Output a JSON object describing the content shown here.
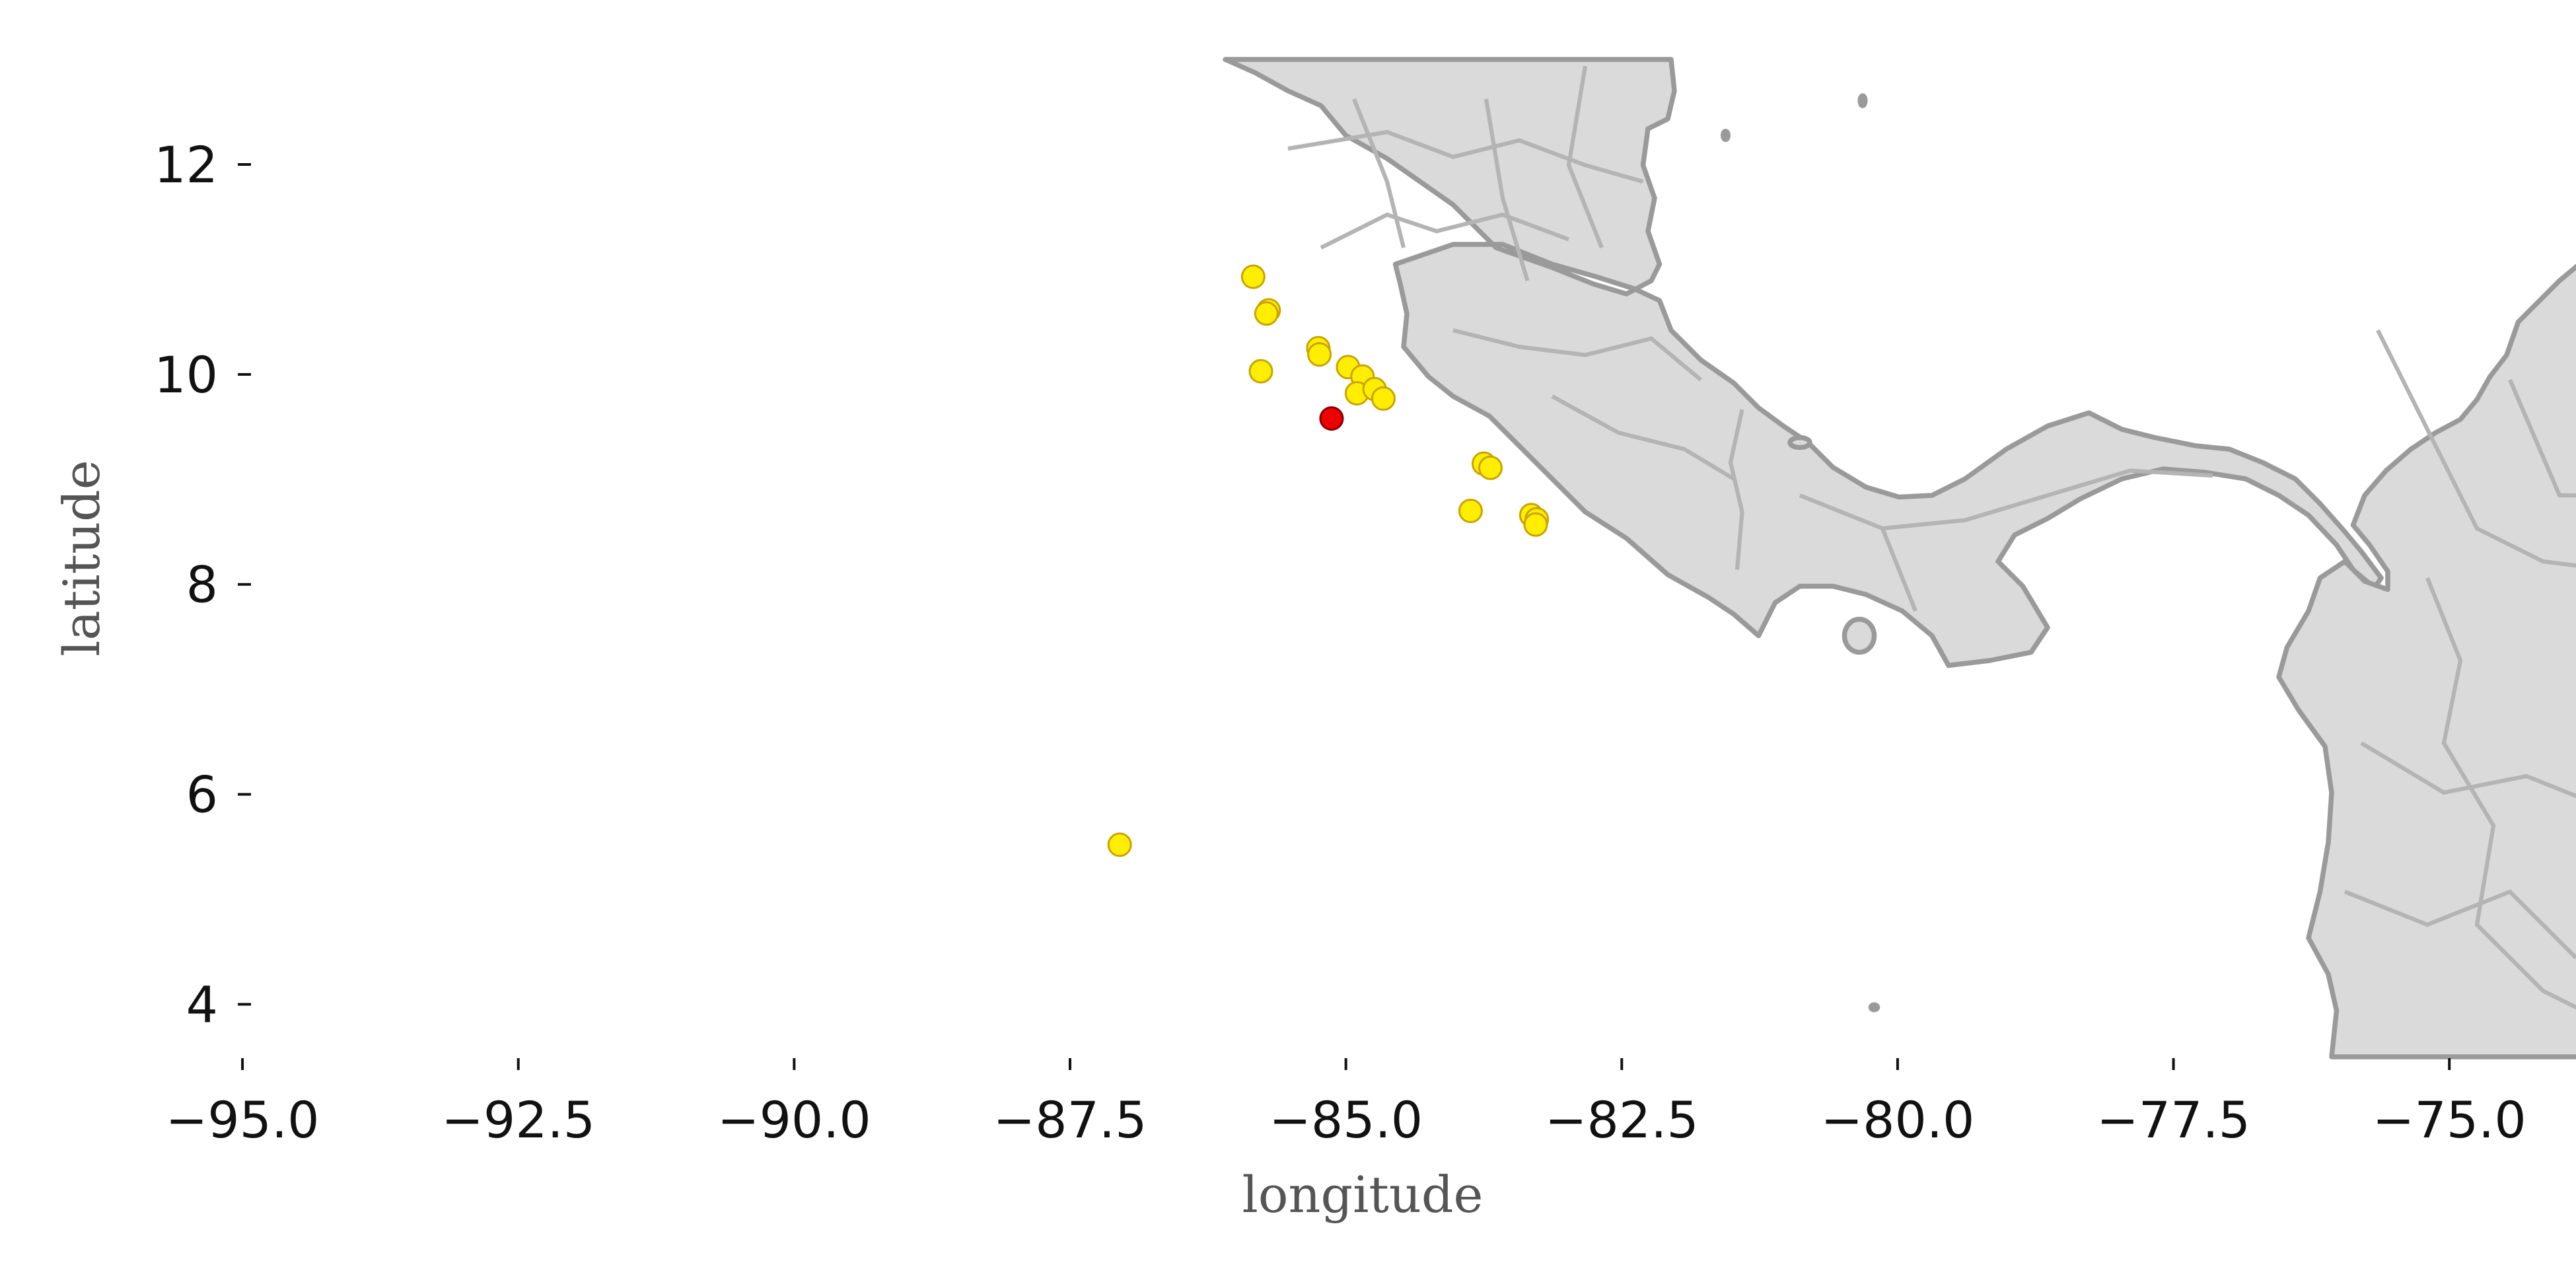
{
  "map": {
    "x_label": "longitude",
    "y_label": "latitude",
    "x_ticks": [
      "−95.0",
      "−92.5",
      "−90.0",
      "−87.5",
      "−85.0",
      "−82.5",
      "−80.0",
      "−77.5",
      "−75.0"
    ],
    "y_ticks": [
      "12",
      "10",
      "8",
      "6",
      "4"
    ],
    "land_color": "#dadada",
    "border_color": "#9a9a9a",
    "marker_default_color": "#ffee00",
    "marker_highlight_color": "#ee0000"
  },
  "chart_data": {
    "type": "scatter",
    "xlabel": "longitude",
    "ylabel": "latitude",
    "xlim": [
      -96.0,
      -74.75
    ],
    "ylim": [
      3.5,
      13.0
    ],
    "grid": false,
    "series": [
      {
        "color": "#ffee00",
        "points": [
          {
            "x": -85.84,
            "y": 10.93
          },
          {
            "x": -85.7,
            "y": 10.61
          },
          {
            "x": -85.72,
            "y": 10.58
          },
          {
            "x": -85.77,
            "y": 10.03
          },
          {
            "x": -85.25,
            "y": 10.25
          },
          {
            "x": -85.24,
            "y": 10.19
          },
          {
            "x": -84.98,
            "y": 10.07
          },
          {
            "x": -84.85,
            "y": 9.98
          },
          {
            "x": -84.9,
            "y": 9.82
          },
          {
            "x": -84.74,
            "y": 9.86
          },
          {
            "x": -84.66,
            "y": 9.77
          },
          {
            "x": -83.75,
            "y": 9.15
          },
          {
            "x": -83.69,
            "y": 9.11
          },
          {
            "x": -83.87,
            "y": 8.7
          },
          {
            "x": -83.32,
            "y": 8.66
          },
          {
            "x": -83.27,
            "y": 8.62
          },
          {
            "x": -83.28,
            "y": 8.57
          },
          {
            "x": -87.05,
            "y": 5.52
          }
        ]
      },
      {
        "color": "#ee0000",
        "points": [
          {
            "x": -85.13,
            "y": 9.58
          }
        ]
      }
    ]
  }
}
